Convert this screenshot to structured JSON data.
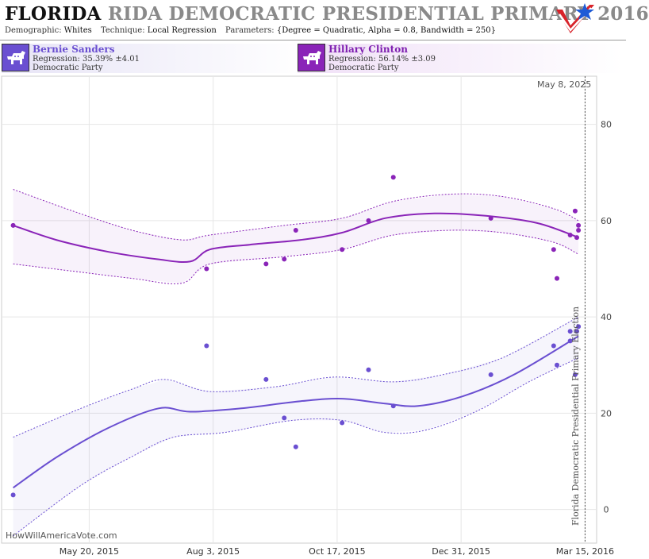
{
  "header": {
    "title_state": "FLORIDA",
    "title_rest": "RIDA DEMOCRATIC PRESIDENTIAL PRIMARY 2016",
    "params": [
      {
        "key": "Demographic:",
        "value": "Whites"
      },
      {
        "key": "Technique:",
        "value": "Local Regression"
      },
      {
        "key": "Parameters:",
        "value": "{Degree = Quadratic, Alpha = 0.8, Bandwidth = 250}"
      }
    ],
    "logo_icon": "star-check-logo-icon"
  },
  "candidates": [
    {
      "name": "Bernie Sanders",
      "regression": "Regression: 35.39% ±4.01",
      "party": "Democratic Party",
      "color": "#6a4fd1",
      "icon": "donkey-icon"
    },
    {
      "name": "Hillary Clinton",
      "regression": "Regression: 56.14% ±3.09",
      "party": "Democratic Party",
      "color": "#8a24b8",
      "icon": "donkey-icon"
    }
  ],
  "watermark": "HowWillAmericaVote.com",
  "current_date_label": "May 8, 2025",
  "election_label": "Florida Democratic Presidential Primary Election",
  "chart_data": {
    "type": "scatter",
    "xlabel": "",
    "ylabel": "",
    "ylim": [
      -7,
      90
    ],
    "xlim": [
      "2015-03-28",
      "2016-03-22"
    ],
    "x_ticks": [
      {
        "date": "2015-05-20",
        "label": "May 20, 2015"
      },
      {
        "date": "2015-08-03",
        "label": "Aug 3, 2015"
      },
      {
        "date": "2015-10-17",
        "label": "Oct 17, 2015"
      },
      {
        "date": "2015-12-31",
        "label": "Dec 31, 2015"
      },
      {
        "date": "2016-03-15",
        "label": "Mar 15, 2016"
      }
    ],
    "y_ticks": [
      0,
      20,
      40,
      60,
      80
    ],
    "election_date": "2016-03-15",
    "grid": true,
    "series": [
      {
        "name": "Hillary Clinton",
        "color": "#8a24b8",
        "points": [
          {
            "x": "2015-04-04",
            "y": 59
          },
          {
            "x": "2015-07-30",
            "y": 50
          },
          {
            "x": "2015-09-04",
            "y": 51
          },
          {
            "x": "2015-09-15",
            "y": 52
          },
          {
            "x": "2015-09-22",
            "y": 58
          },
          {
            "x": "2015-10-20",
            "y": 54
          },
          {
            "x": "2015-11-05",
            "y": 60
          },
          {
            "x": "2015-11-20",
            "y": 69
          },
          {
            "x": "2016-01-18",
            "y": 60.5
          },
          {
            "x": "2016-02-25",
            "y": 54
          },
          {
            "x": "2016-02-27",
            "y": 48
          },
          {
            "x": "2016-03-06",
            "y": 57
          },
          {
            "x": "2016-03-09",
            "y": 62
          },
          {
            "x": "2016-03-10",
            "y": 56.5
          },
          {
            "x": "2016-03-11",
            "y": 59
          },
          {
            "x": "2016-03-11",
            "y": 58
          }
        ],
        "fit": [
          {
            "x": "2015-04-04",
            "y": 59
          },
          {
            "x": "2015-04-30",
            "y": 56
          },
          {
            "x": "2015-06-01",
            "y": 53.5
          },
          {
            "x": "2015-06-30",
            "y": 52
          },
          {
            "x": "2015-07-20",
            "y": 51.5
          },
          {
            "x": "2015-08-01",
            "y": 54
          },
          {
            "x": "2015-08-25",
            "y": 55
          },
          {
            "x": "2015-09-25",
            "y": 56
          },
          {
            "x": "2015-10-20",
            "y": 57.5
          },
          {
            "x": "2015-11-15",
            "y": 60.5
          },
          {
            "x": "2015-12-15",
            "y": 61.5
          },
          {
            "x": "2016-01-15",
            "y": 61
          },
          {
            "x": "2016-02-15",
            "y": 59.5
          },
          {
            "x": "2016-03-11",
            "y": 56.5
          }
        ],
        "upper": [
          {
            "x": "2015-04-04",
            "y": 66.5
          },
          {
            "x": "2015-05-10",
            "y": 62
          },
          {
            "x": "2015-06-15",
            "y": 58
          },
          {
            "x": "2015-07-15",
            "y": 56
          },
          {
            "x": "2015-08-01",
            "y": 57
          },
          {
            "x": "2015-09-15",
            "y": 59
          },
          {
            "x": "2015-10-20",
            "y": 60.5
          },
          {
            "x": "2015-11-20",
            "y": 64
          },
          {
            "x": "2015-12-25",
            "y": 65.5
          },
          {
            "x": "2016-01-25",
            "y": 65
          },
          {
            "x": "2016-02-25",
            "y": 62.5
          },
          {
            "x": "2016-03-11",
            "y": 60
          }
        ],
        "lower": [
          {
            "x": "2015-04-04",
            "y": 51
          },
          {
            "x": "2015-05-10",
            "y": 49.5
          },
          {
            "x": "2015-06-15",
            "y": 48
          },
          {
            "x": "2015-07-15",
            "y": 47
          },
          {
            "x": "2015-08-01",
            "y": 51
          },
          {
            "x": "2015-09-15",
            "y": 52.5
          },
          {
            "x": "2015-10-20",
            "y": 54
          },
          {
            "x": "2015-11-20",
            "y": 57
          },
          {
            "x": "2015-12-25",
            "y": 58
          },
          {
            "x": "2016-01-25",
            "y": 57.5
          },
          {
            "x": "2016-02-25",
            "y": 55.5
          },
          {
            "x": "2016-03-11",
            "y": 53
          }
        ]
      },
      {
        "name": "Bernie Sanders",
        "color": "#6a4fd1",
        "points": [
          {
            "x": "2015-04-04",
            "y": 3
          },
          {
            "x": "2015-07-30",
            "y": 34
          },
          {
            "x": "2015-09-04",
            "y": 27
          },
          {
            "x": "2015-09-15",
            "y": 19
          },
          {
            "x": "2015-09-22",
            "y": 13
          },
          {
            "x": "2015-10-20",
            "y": 18
          },
          {
            "x": "2015-11-05",
            "y": 29
          },
          {
            "x": "2015-11-20",
            "y": 21.5
          },
          {
            "x": "2016-01-18",
            "y": 28
          },
          {
            "x": "2016-02-25",
            "y": 34
          },
          {
            "x": "2016-02-27",
            "y": 30
          },
          {
            "x": "2016-03-06",
            "y": 37
          },
          {
            "x": "2016-03-06",
            "y": 35
          },
          {
            "x": "2016-03-09",
            "y": 28
          },
          {
            "x": "2016-03-10",
            "y": 37
          },
          {
            "x": "2016-03-11",
            "y": 38
          }
        ],
        "fit": [
          {
            "x": "2015-04-04",
            "y": 4.5
          },
          {
            "x": "2015-05-01",
            "y": 11
          },
          {
            "x": "2015-06-01",
            "y": 17
          },
          {
            "x": "2015-07-01",
            "y": 21
          },
          {
            "x": "2015-07-20",
            "y": 20.3
          },
          {
            "x": "2015-08-20",
            "y": 21
          },
          {
            "x": "2015-09-25",
            "y": 22.5
          },
          {
            "x": "2015-10-20",
            "y": 23
          },
          {
            "x": "2015-11-15",
            "y": 22
          },
          {
            "x": "2015-12-05",
            "y": 21.5
          },
          {
            "x": "2016-01-01",
            "y": 23.5
          },
          {
            "x": "2016-02-01",
            "y": 28
          },
          {
            "x": "2016-03-11",
            "y": 36
          }
        ],
        "upper": [
          {
            "x": "2015-04-04",
            "y": 15
          },
          {
            "x": "2015-05-15",
            "y": 21
          },
          {
            "x": "2015-06-15",
            "y": 25
          },
          {
            "x": "2015-07-05",
            "y": 27
          },
          {
            "x": "2015-08-01",
            "y": 24.5
          },
          {
            "x": "2015-09-10",
            "y": 25.5
          },
          {
            "x": "2015-10-15",
            "y": 27.5
          },
          {
            "x": "2015-11-20",
            "y": 26.5
          },
          {
            "x": "2015-12-20",
            "y": 28
          },
          {
            "x": "2016-01-25",
            "y": 31.5
          },
          {
            "x": "2016-03-11",
            "y": 40
          }
        ],
        "lower": [
          {
            "x": "2015-04-04",
            "y": -5.5
          },
          {
            "x": "2015-05-15",
            "y": 5
          },
          {
            "x": "2015-06-15",
            "y": 11
          },
          {
            "x": "2015-07-10",
            "y": 15
          },
          {
            "x": "2015-08-10",
            "y": 16
          },
          {
            "x": "2015-09-20",
            "y": 18.5
          },
          {
            "x": "2015-10-20",
            "y": 18.5
          },
          {
            "x": "2015-11-15",
            "y": 16
          },
          {
            "x": "2015-12-10",
            "y": 16.5
          },
          {
            "x": "2016-01-10",
            "y": 20.5
          },
          {
            "x": "2016-02-10",
            "y": 26.5
          },
          {
            "x": "2016-03-11",
            "y": 31.5
          }
        ]
      }
    ]
  }
}
